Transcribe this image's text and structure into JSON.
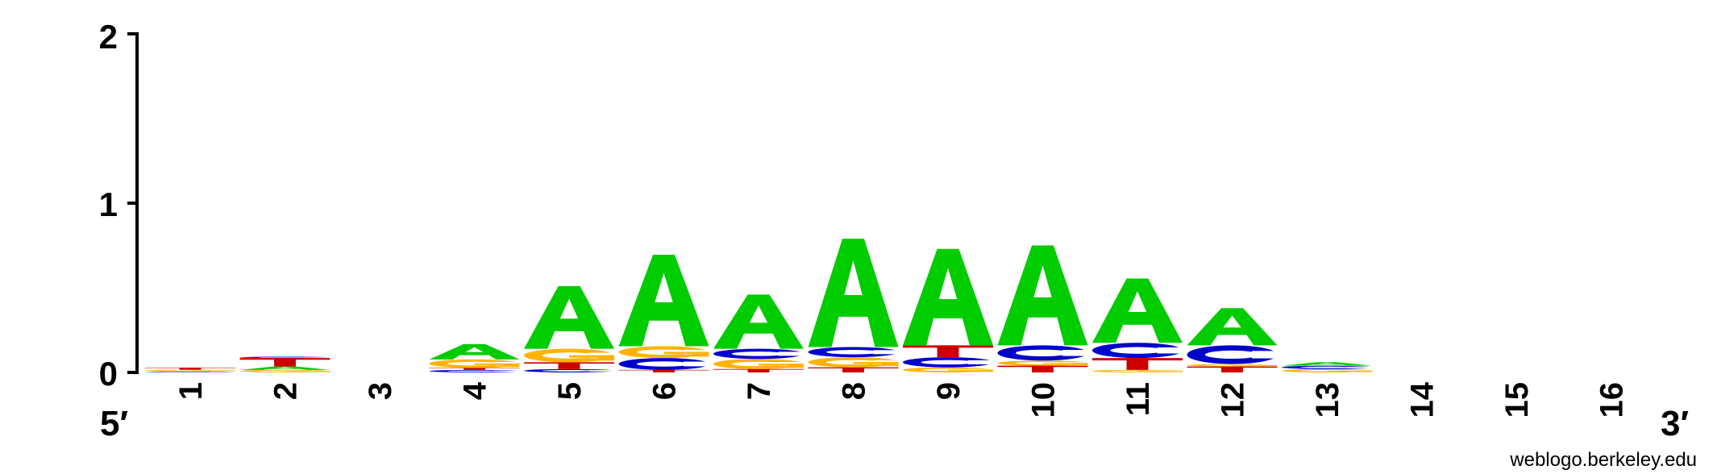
{
  "chart_data": {
    "type": "sequence-logo",
    "title": "",
    "xlabel": "",
    "ylabel": "",
    "ylim": [
      0,
      2
    ],
    "yticks": [
      "0",
      "1",
      "2"
    ],
    "end_labels": {
      "left": "5′",
      "right": "3′"
    },
    "credit": "weblogo.berkeley.edu",
    "colors": {
      "A": "#00CC00",
      "C": "#0000CC",
      "G": "#FFB300",
      "T": "#CC0000"
    },
    "positions": [
      {
        "label": "1",
        "stack": [
          [
            "C",
            0.004
          ],
          [
            "A",
            0.004
          ],
          [
            "G",
            0.008
          ],
          [
            "T",
            0.012
          ]
        ]
      },
      {
        "label": "2",
        "stack": [
          [
            "G",
            0.015
          ],
          [
            "A",
            0.02
          ],
          [
            "T",
            0.05
          ],
          [
            "C",
            0.008
          ]
        ]
      },
      {
        "label": "3",
        "stack": []
      },
      {
        "label": "4",
        "stack": [
          [
            "C",
            0.015
          ],
          [
            "T",
            0.012
          ],
          [
            "G",
            0.05
          ],
          [
            "A",
            0.09
          ]
        ]
      },
      {
        "label": "5",
        "stack": [
          [
            "C",
            0.02
          ],
          [
            "T",
            0.04
          ],
          [
            "G",
            0.08
          ],
          [
            "A",
            0.37
          ]
        ]
      },
      {
        "label": "6",
        "stack": [
          [
            "T",
            0.015
          ],
          [
            "C",
            0.07
          ],
          [
            "G",
            0.07
          ],
          [
            "A",
            0.54
          ]
        ]
      },
      {
        "label": "7",
        "stack": [
          [
            "T",
            0.02
          ],
          [
            "G",
            0.06
          ],
          [
            "C",
            0.06
          ],
          [
            "A",
            0.32
          ]
        ]
      },
      {
        "label": "8",
        "stack": [
          [
            "T",
            0.03
          ],
          [
            "G",
            0.06
          ],
          [
            "C",
            0.06
          ],
          [
            "A",
            0.64
          ]
        ]
      },
      {
        "label": "9",
        "stack": [
          [
            "G",
            0.03
          ],
          [
            "C",
            0.06
          ],
          [
            "T",
            0.07
          ],
          [
            "A",
            0.57
          ]
        ]
      },
      {
        "label": "10",
        "stack": [
          [
            "T",
            0.04
          ],
          [
            "G",
            0.03
          ],
          [
            "C",
            0.09
          ],
          [
            "A",
            0.59
          ]
        ]
      },
      {
        "label": "11",
        "stack": [
          [
            "G",
            0.015
          ],
          [
            "T",
            0.07
          ],
          [
            "C",
            0.09
          ],
          [
            "A",
            0.38
          ]
        ]
      },
      {
        "label": "12",
        "stack": [
          [
            "T",
            0.035
          ],
          [
            "G",
            0.015
          ],
          [
            "C",
            0.11
          ],
          [
            "A",
            0.22
          ]
        ]
      },
      {
        "label": "13",
        "stack": [
          [
            "G",
            0.02
          ],
          [
            "C",
            0.02
          ],
          [
            "A",
            0.02
          ]
        ]
      },
      {
        "label": "14",
        "stack": []
      },
      {
        "label": "15",
        "stack": []
      },
      {
        "label": "16",
        "stack": []
      }
    ]
  }
}
